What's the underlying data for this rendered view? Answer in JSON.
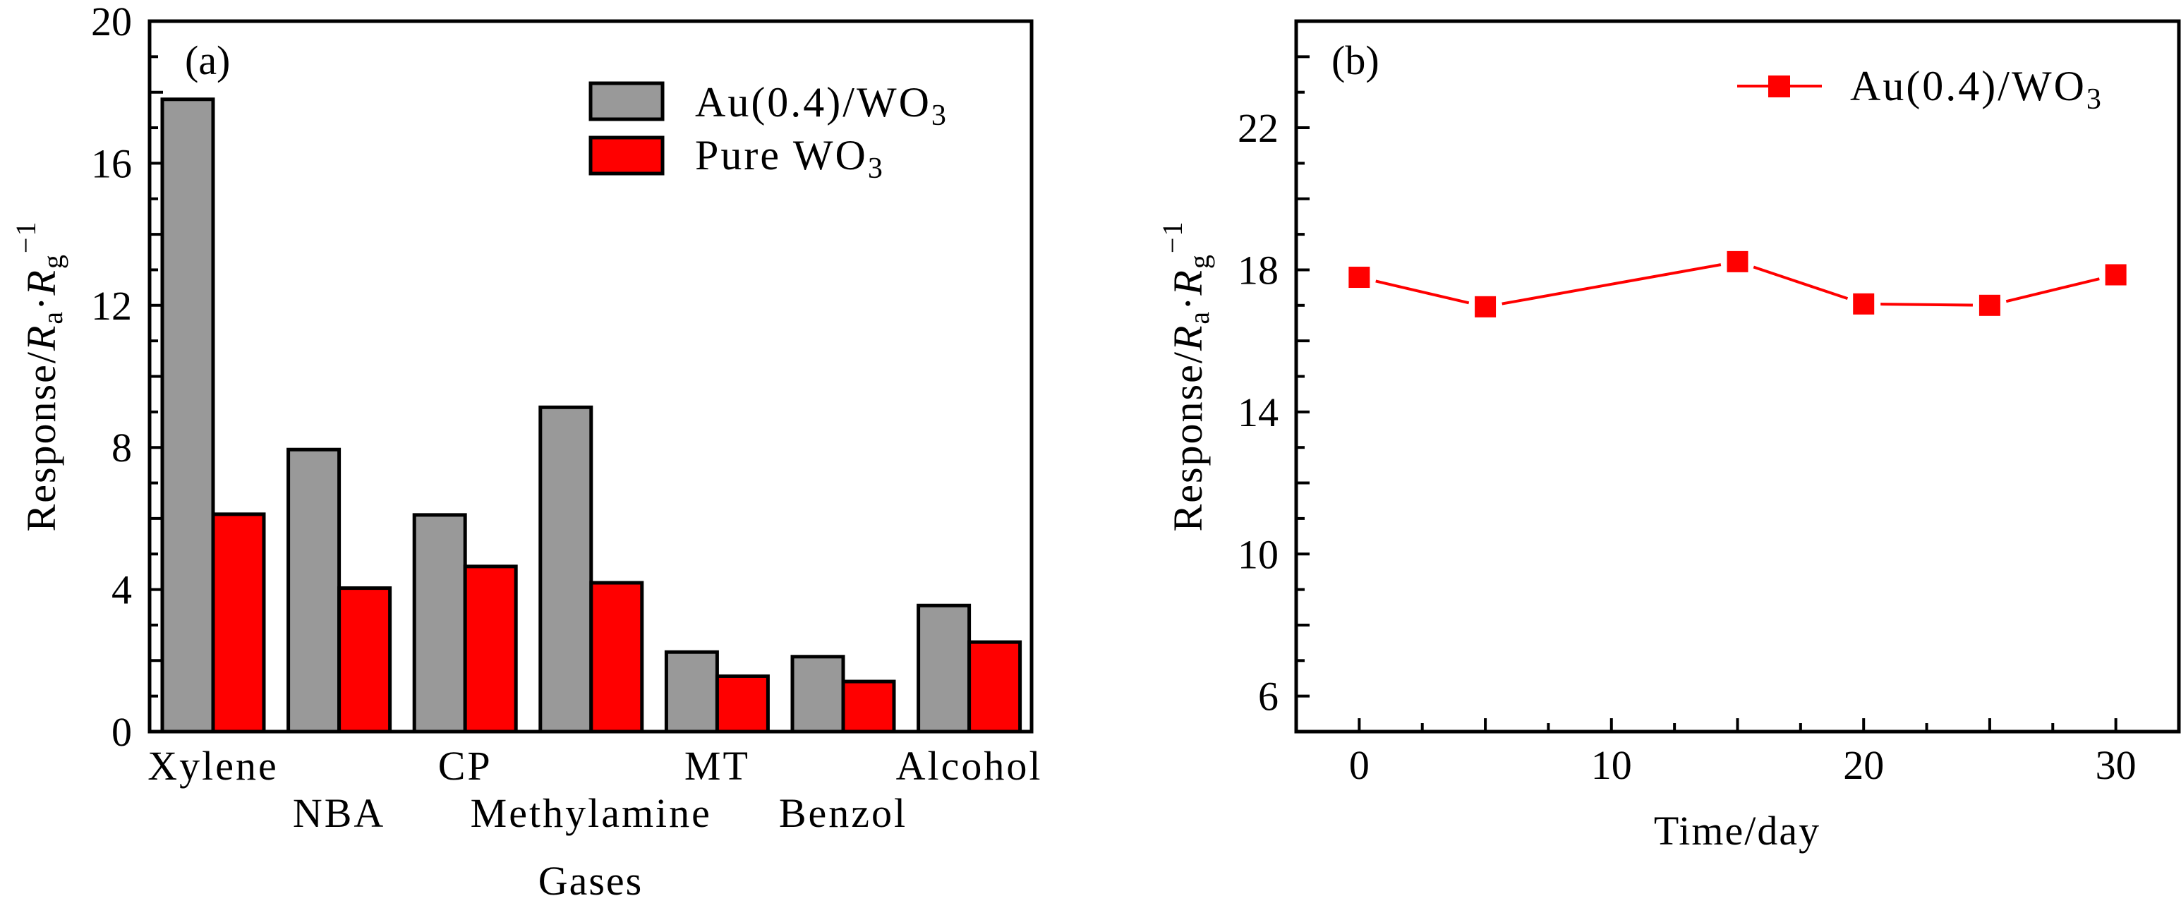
{
  "chart_data": [
    {
      "panel_label": "(a)",
      "type": "bar",
      "title": "",
      "xlabel": "Gases",
      "ylabel": "Response/R_a·R_g^-1",
      "ylabel_parts": {
        "main": "Response/",
        "r1": "R",
        "sub1": "a",
        "dot": "·",
        "r2": "R",
        "sub2": "g",
        "sup": "−1"
      },
      "categories": [
        "Xylene",
        "NBA",
        "CP",
        "Methylamine",
        "MT",
        "Benzol",
        "Alcohol"
      ],
      "series": [
        {
          "name": "Au(0.4)/WO3",
          "label_main": "Au(0.4)/WO",
          "label_sub": "3",
          "color": "#999999",
          "values": [
            17.8,
            7.94,
            6.1,
            9.13,
            2.24,
            2.11,
            3.55
          ]
        },
        {
          "name": "Pure WO3",
          "label_main": "Pure WO",
          "label_sub": "3",
          "color": "#ff0000",
          "values": [
            6.12,
            4.04,
            4.65,
            4.19,
            1.56,
            1.41,
            2.52
          ]
        }
      ],
      "ylim": [
        0,
        20
      ],
      "yticks": [
        0,
        4,
        8,
        12,
        16,
        20
      ],
      "ytick_labels": [
        "0",
        "4",
        "8",
        "12",
        "16",
        "20"
      ],
      "y_minor_step": 1,
      "grid": false,
      "legend_position": "top-right"
    },
    {
      "panel_label": "(b)",
      "type": "line",
      "title": "",
      "xlabel": "Time/day",
      "ylabel": "Response/R_a·R_g^-1",
      "ylabel_parts": {
        "main": "Response/",
        "r1": "R",
        "sub1": "a",
        "dot": "·",
        "r2": "R",
        "sub2": "g",
        "sup": "−1"
      },
      "x": [
        0,
        5,
        15,
        20,
        25,
        30
      ],
      "series": [
        {
          "name": "Au(0.4)/WO3",
          "label_main": "Au(0.4)/WO",
          "label_sub": "3",
          "color": "#ff0000",
          "marker": "square",
          "values": [
            17.79,
            16.96,
            18.23,
            17.04,
            17.0,
            17.86
          ]
        }
      ],
      "xlim": [
        -2.5,
        32.5
      ],
      "ylim": [
        5,
        25
      ],
      "xticks": [
        0,
        10,
        20,
        30
      ],
      "xtick_labels": [
        "0",
        "10",
        "20",
        "30"
      ],
      "x_minor_step": 2.5,
      "yticks": [
        6,
        10,
        14,
        18,
        22
      ],
      "ytick_labels": [
        "6",
        "10",
        "14",
        "18",
        "22"
      ],
      "y_minor_step": 1,
      "grid": false,
      "legend_position": "top-right"
    }
  ]
}
